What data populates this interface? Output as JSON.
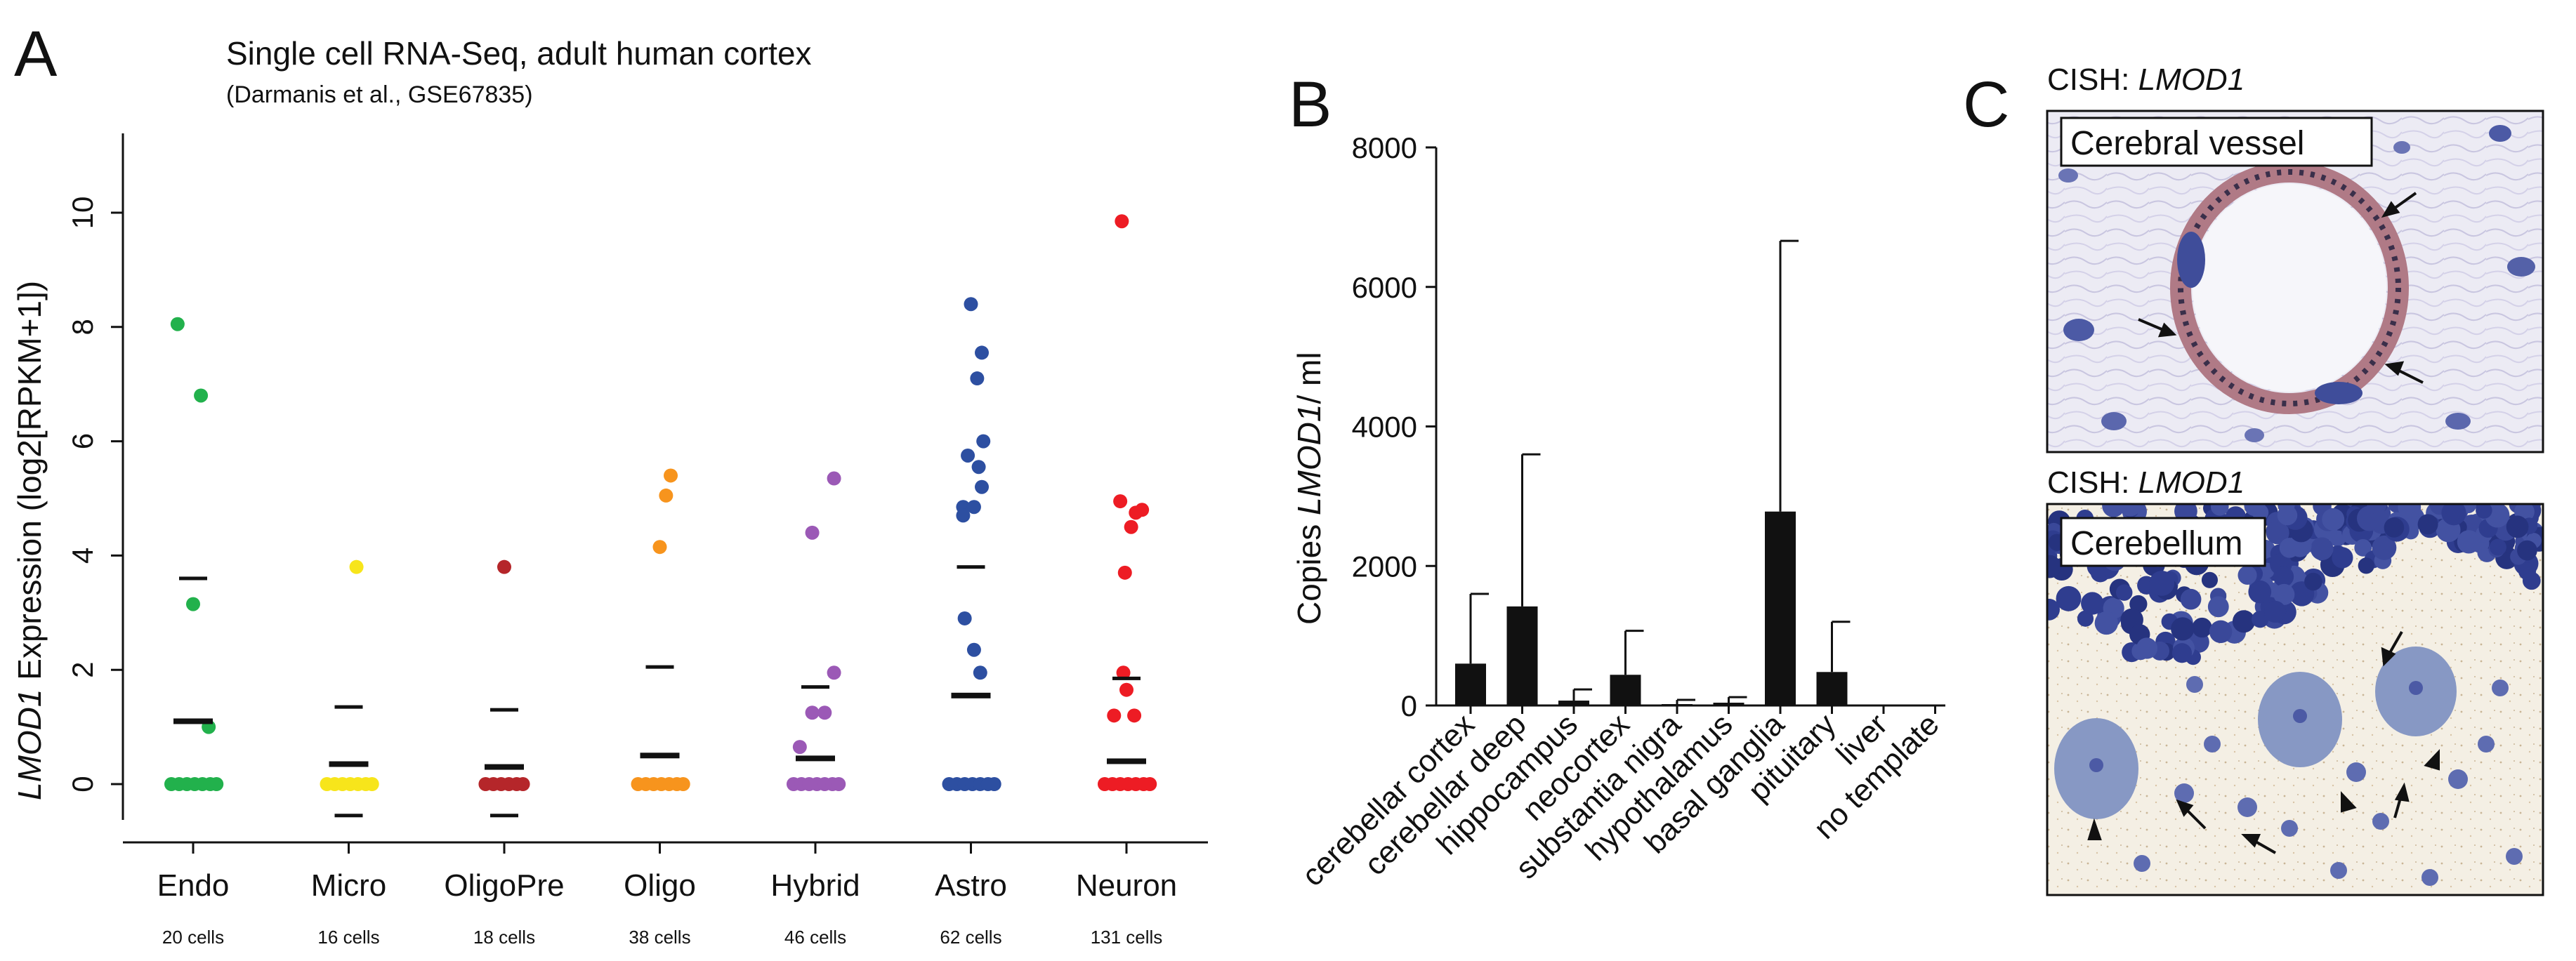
{
  "panels": {
    "a": {
      "letter": "A"
    },
    "b": {
      "letter": "B"
    },
    "c": {
      "letter": "C",
      "image1": {
        "label_prefix": "CISH: ",
        "label_gene": "LMOD1",
        "caption": "Cerebral vessel"
      },
      "image2": {
        "label_prefix": "CISH: ",
        "label_gene": "LMOD1",
        "caption": "Cerebellum"
      }
    }
  },
  "chart_data": [
    {
      "type": "scatter",
      "title": "Single cell RNA-Seq, adult human cortex",
      "subtitle": "(Darmanis et al., GSE67835)",
      "ylabel_gene": "LMOD1",
      "ylabel_rest": " Expression (log2[RPKM+1])",
      "ylim": [
        -0.6,
        10.3
      ],
      "yticks": [
        0,
        2,
        4,
        6,
        8,
        10
      ],
      "categories": [
        "Endo",
        "Micro",
        "OligoPre",
        "Oligo",
        "Hybrid",
        "Astro",
        "Neuron"
      ],
      "cell_counts": [
        "20 cells",
        "16 cells",
        "18 cells",
        "38 cells",
        "46 cells",
        "62 cells",
        "131 cells"
      ],
      "colors": [
        "#22b14c",
        "#f7e51b",
        "#b5262a",
        "#f7941d",
        "#9b59b6",
        "#2d4fa1",
        "#ed1c24"
      ],
      "groups": [
        {
          "points": [
            {
              "x": -0.1,
              "y": 8.05
            },
            {
              "x": 0.05,
              "y": 6.8
            },
            {
              "x": 0.0,
              "y": 3.15
            },
            {
              "x": 0.1,
              "y": 1.0
            },
            {
              "x": -0.14,
              "y": 0
            },
            {
              "x": -0.09,
              "y": 0
            },
            {
              "x": -0.04,
              "y": 0
            },
            {
              "x": 0.01,
              "y": 0
            },
            {
              "x": 0.06,
              "y": 0
            },
            {
              "x": 0.11,
              "y": 0
            },
            {
              "x": 0.15,
              "y": 0
            }
          ],
          "mean": 1.1,
          "upper": 3.6,
          "lower": null
        },
        {
          "points": [
            {
              "x": 0.05,
              "y": 3.8
            },
            {
              "x": -0.14,
              "y": 0
            },
            {
              "x": -0.09,
              "y": 0
            },
            {
              "x": -0.04,
              "y": 0
            },
            {
              "x": 0.01,
              "y": 0
            },
            {
              "x": 0.06,
              "y": 0
            },
            {
              "x": 0.11,
              "y": 0
            },
            {
              "x": 0.15,
              "y": 0
            }
          ],
          "mean": 0.35,
          "upper": 1.35,
          "lower": -0.55
        },
        {
          "points": [
            {
              "x": 0.0,
              "y": 3.8
            },
            {
              "x": -0.12,
              "y": 0
            },
            {
              "x": -0.07,
              "y": 0
            },
            {
              "x": -0.02,
              "y": 0
            },
            {
              "x": 0.03,
              "y": 0
            },
            {
              "x": 0.08,
              "y": 0
            },
            {
              "x": 0.12,
              "y": 0
            }
          ],
          "mean": 0.3,
          "upper": 1.3,
          "lower": -0.55
        },
        {
          "points": [
            {
              "x": 0.07,
              "y": 5.4
            },
            {
              "x": 0.04,
              "y": 5.05
            },
            {
              "x": 0.0,
              "y": 4.15
            },
            {
              "x": -0.14,
              "y": 0
            },
            {
              "x": -0.09,
              "y": 0
            },
            {
              "x": -0.04,
              "y": 0
            },
            {
              "x": 0.01,
              "y": 0
            },
            {
              "x": 0.06,
              "y": 0
            },
            {
              "x": 0.11,
              "y": 0
            },
            {
              "x": 0.15,
              "y": 0
            }
          ],
          "mean": 0.5,
          "upper": 2.05,
          "lower": null
        },
        {
          "points": [
            {
              "x": 0.12,
              "y": 5.35
            },
            {
              "x": -0.02,
              "y": 4.4
            },
            {
              "x": 0.12,
              "y": 1.95
            },
            {
              "x": -0.02,
              "y": 1.25
            },
            {
              "x": 0.06,
              "y": 1.25
            },
            {
              "x": -0.1,
              "y": 0.65
            },
            {
              "x": -0.14,
              "y": 0
            },
            {
              "x": -0.09,
              "y": 0
            },
            {
              "x": -0.04,
              "y": 0
            },
            {
              "x": 0.01,
              "y": 0
            },
            {
              "x": 0.06,
              "y": 0
            },
            {
              "x": 0.11,
              "y": 0
            },
            {
              "x": 0.15,
              "y": 0
            }
          ],
          "mean": 0.45,
          "upper": 1.7,
          "lower": null
        },
        {
          "points": [
            {
              "x": 0.0,
              "y": 8.4
            },
            {
              "x": 0.07,
              "y": 7.55
            },
            {
              "x": 0.04,
              "y": 7.1
            },
            {
              "x": 0.08,
              "y": 6.0
            },
            {
              "x": -0.02,
              "y": 5.75
            },
            {
              "x": 0.05,
              "y": 5.55
            },
            {
              "x": 0.07,
              "y": 5.2
            },
            {
              "x": -0.05,
              "y": 4.85
            },
            {
              "x": 0.02,
              "y": 4.85
            },
            {
              "x": -0.05,
              "y": 4.7
            },
            {
              "x": -0.04,
              "y": 2.9
            },
            {
              "x": 0.02,
              "y": 2.35
            },
            {
              "x": 0.06,
              "y": 1.95
            },
            {
              "x": -0.14,
              "y": 0
            },
            {
              "x": -0.09,
              "y": 0
            },
            {
              "x": -0.04,
              "y": 0
            },
            {
              "x": 0.01,
              "y": 0
            },
            {
              "x": 0.06,
              "y": 0
            },
            {
              "x": 0.11,
              "y": 0
            },
            {
              "x": 0.15,
              "y": 0
            }
          ],
          "mean": 1.55,
          "upper": 3.8,
          "lower": null
        },
        {
          "points": [
            {
              "x": -0.03,
              "y": 9.85
            },
            {
              "x": 0.06,
              "y": 4.75
            },
            {
              "x": 0.1,
              "y": 4.8
            },
            {
              "x": -0.04,
              "y": 4.95
            },
            {
              "x": 0.03,
              "y": 4.5
            },
            {
              "x": -0.01,
              "y": 3.7
            },
            {
              "x": -0.02,
              "y": 1.95
            },
            {
              "x": 0.0,
              "y": 1.65
            },
            {
              "x": -0.08,
              "y": 1.2
            },
            {
              "x": 0.05,
              "y": 1.2
            },
            {
              "x": -0.14,
              "y": 0
            },
            {
              "x": -0.09,
              "y": 0
            },
            {
              "x": -0.04,
              "y": 0
            },
            {
              "x": 0.01,
              "y": 0
            },
            {
              "x": 0.06,
              "y": 0
            },
            {
              "x": 0.11,
              "y": 0
            },
            {
              "x": 0.15,
              "y": 0
            }
          ],
          "mean": 0.4,
          "upper": 1.85,
          "lower": null
        }
      ]
    },
    {
      "type": "bar",
      "ylabel_prefix": "Copies ",
      "ylabel_gene": "LMOD1",
      "ylabel_suffix": "/ ml",
      "ylim": [
        0,
        8000
      ],
      "yticks": [
        0,
        2000,
        4000,
        6000,
        8000
      ],
      "categories": [
        "cerebellar cortex",
        "cerebellar deep",
        "hippocampus",
        "neocortex",
        "substantia nigra",
        "hypothalamus",
        "basal ganglia",
        "pituitary",
        "liver",
        "no template"
      ],
      "values": [
        600,
        1420,
        70,
        440,
        20,
        40,
        2780,
        480,
        0,
        0
      ],
      "errors": [
        1000,
        2180,
        160,
        630,
        60,
        80,
        3880,
        720,
        0,
        0
      ]
    }
  ]
}
